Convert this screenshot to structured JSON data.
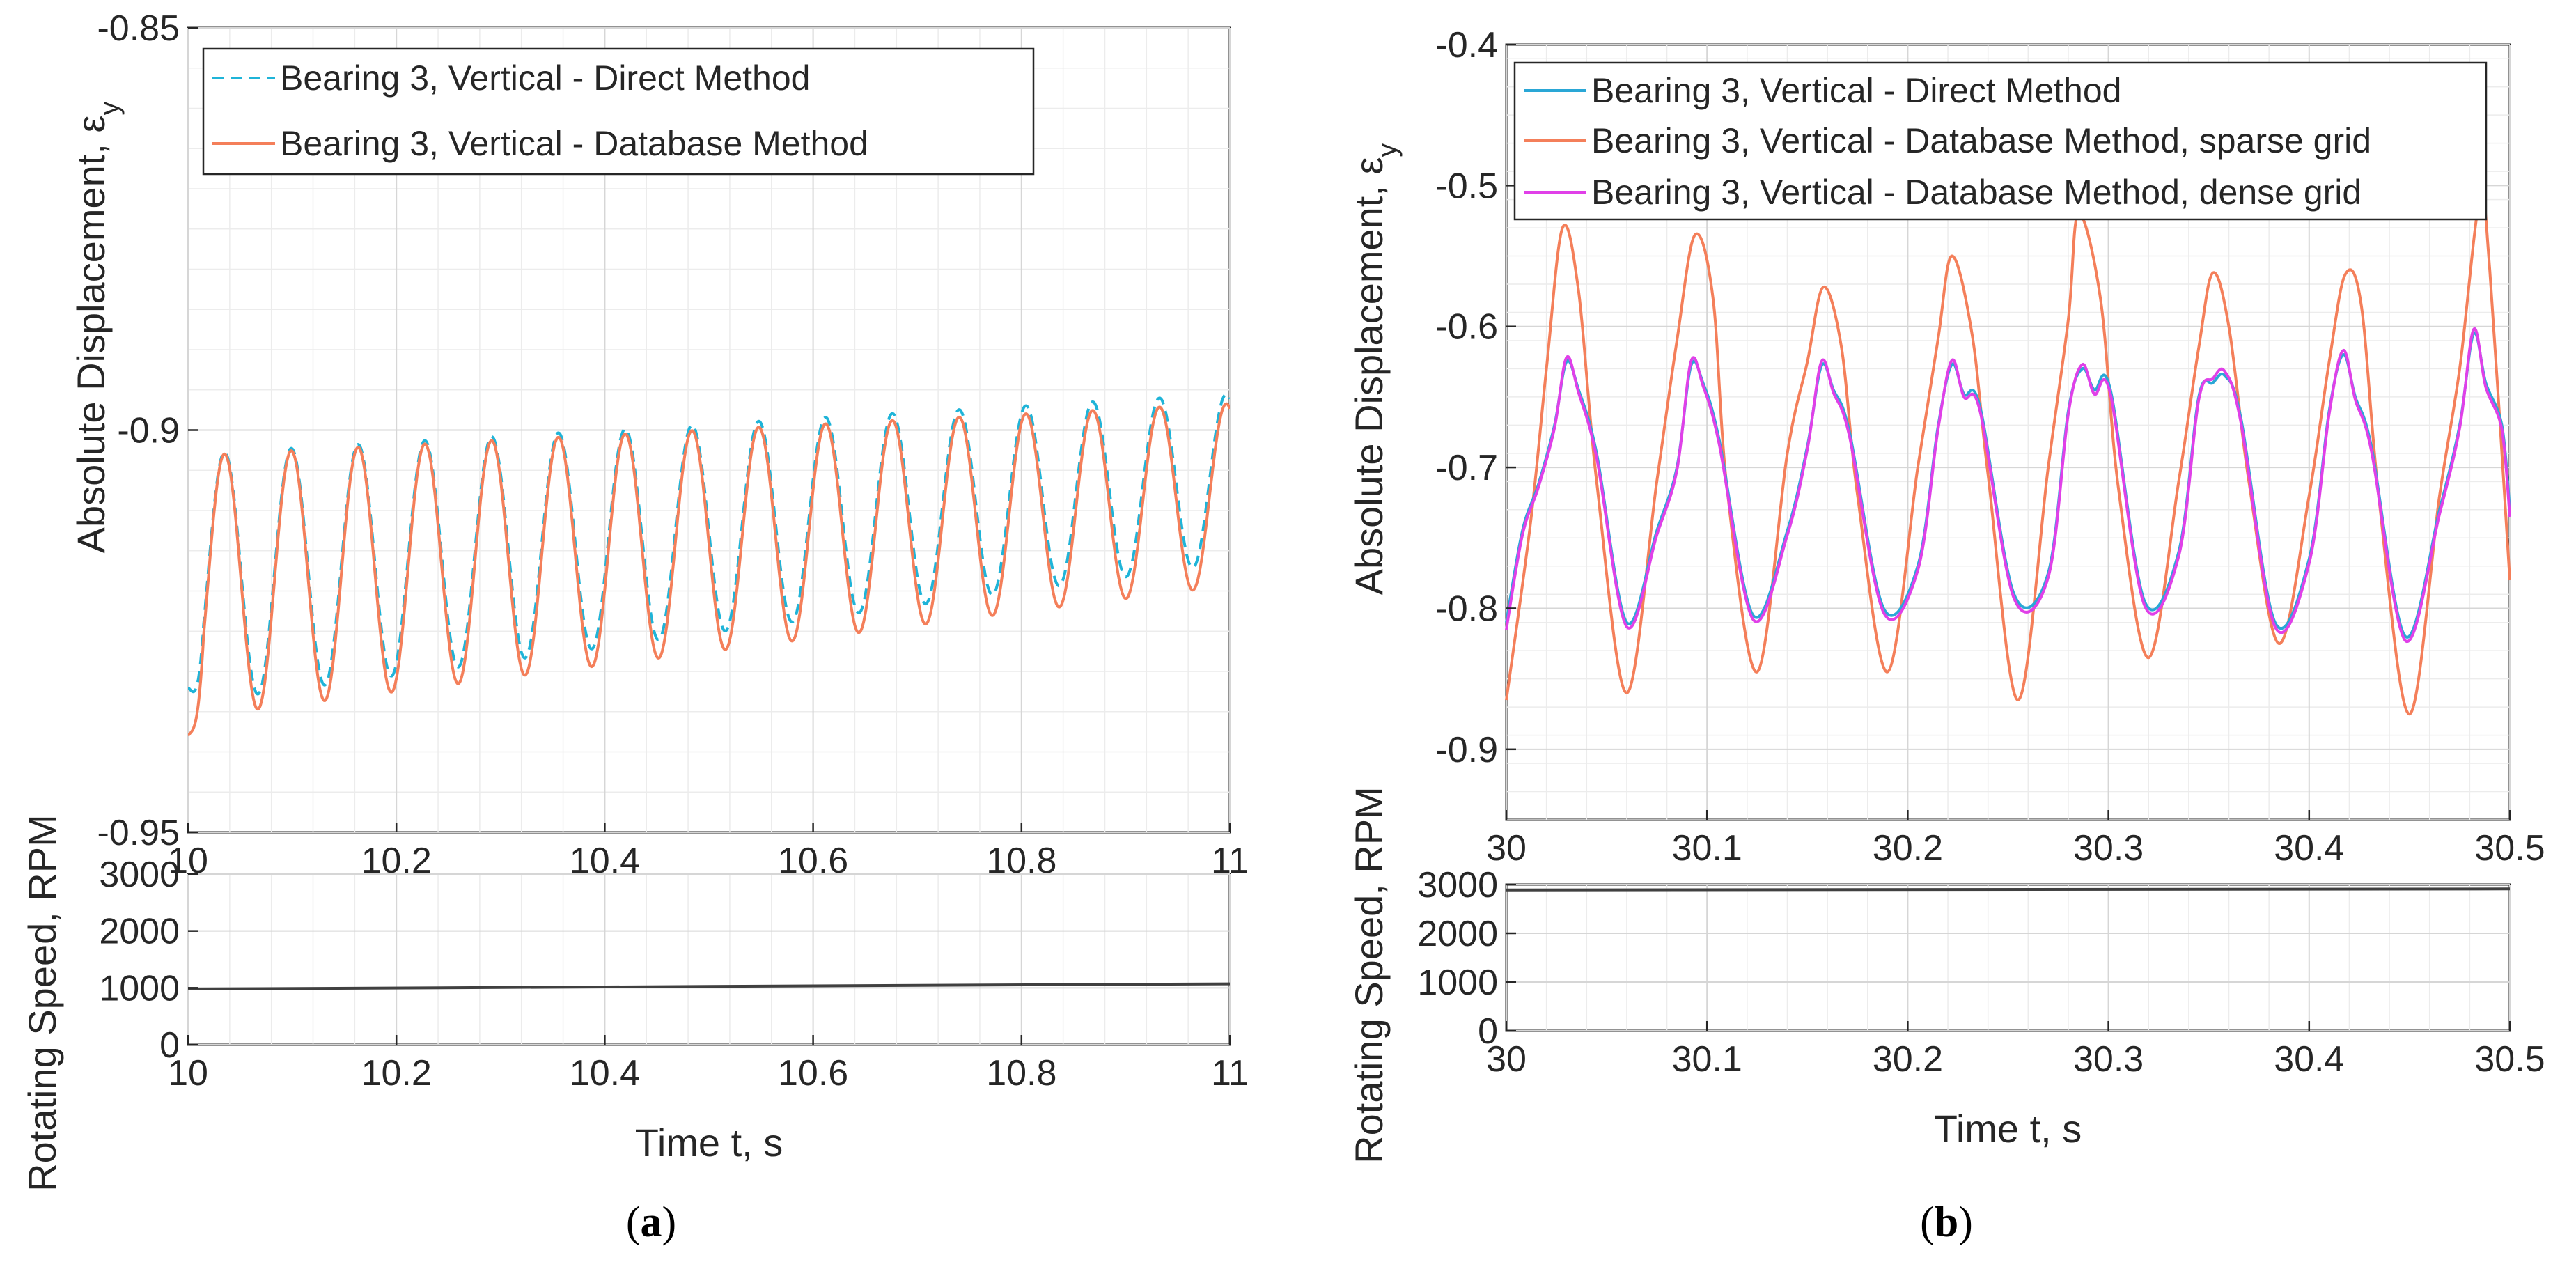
{
  "chart_data": [
    {
      "type": "line",
      "panel": "a",
      "caption": "(a)",
      "ylabel": "Absolute Displacement, ε",
      "ylabel_subscript": "y",
      "xlim": [
        10,
        11
      ],
      "ylim": [
        -0.95,
        -0.85
      ],
      "x_ticks": [
        "10",
        "10.2",
        "10.4",
        "10.6",
        "10.8",
        "11"
      ],
      "y_ticks": [
        "-0.85",
        "-0.9",
        "-0.95"
      ],
      "legend": {
        "position": "top-left"
      },
      "series": [
        {
          "name": "Bearing 3, Vertical - Direct Method",
          "color": "#1fb4d8",
          "dash": true,
          "signal": {
            "freq_hz": 15.6,
            "first_peak": 10.035,
            "amp_start": 0.0155,
            "amp_end": 0.0105,
            "mean_start": -0.9185,
            "mean_end": -0.906,
            "start_value": -0.932
          }
        },
        {
          "name": "Bearing 3, Vertical - Database Method",
          "color": "#f47f5a",
          "dash": false,
          "signal": {
            "freq_hz": 15.6,
            "first_peak": 10.035,
            "amp_start": 0.0163,
            "amp_end": 0.0113,
            "mean_start": -0.9195,
            "mean_end": -0.908,
            "start_value": -0.938
          }
        }
      ]
    },
    {
      "type": "line",
      "panel": "a-speed",
      "ylabel": "Rotating Speed, RPM",
      "xlabel": "Time t, s",
      "xlim": [
        10,
        11
      ],
      "ylim": [
        0,
        3000
      ],
      "x_ticks": [
        "10",
        "10.2",
        "10.4",
        "10.6",
        "10.8",
        "11"
      ],
      "y_ticks": [
        "3000",
        "2000",
        "1000",
        "0"
      ],
      "series": [
        {
          "color": "#404040",
          "x": [
            10,
            11
          ],
          "y": [
            980,
            1070
          ]
        }
      ]
    },
    {
      "type": "line",
      "panel": "b",
      "caption": "(b)",
      "ylabel": "Absolute Displacement, ε",
      "ylabel_subscript": "y",
      "xlim": [
        30,
        30.5
      ],
      "ylim": [
        -0.95,
        -0.4
      ],
      "x_ticks": [
        "30",
        "30.1",
        "30.2",
        "30.3",
        "30.4",
        "30.5"
      ],
      "y_ticks": [
        "-0.4",
        "-0.5",
        "-0.6",
        "-0.7",
        "-0.8",
        "-0.9"
      ],
      "legend": {
        "position": "top-left"
      },
      "series": [
        {
          "name": "Bearing 3, Vertical - Direct Method",
          "color": "#2aa7d6",
          "x": [
            30.0,
            30.008,
            30.016,
            30.024,
            30.03,
            30.036,
            30.045,
            30.06,
            30.075,
            30.085,
            30.092,
            30.098,
            30.106,
            30.123,
            30.14,
            30.15,
            30.157,
            30.163,
            30.171,
            30.188,
            30.205,
            30.215,
            30.222,
            30.228,
            30.236,
            30.253,
            30.27,
            30.28,
            30.287,
            30.293,
            30.301,
            30.318,
            30.335,
            30.345,
            30.352,
            30.358,
            30.366,
            30.383,
            30.4,
            30.41,
            30.417,
            30.423,
            30.431,
            30.448,
            30.465,
            30.475,
            30.482,
            30.488,
            30.496,
            30.5
          ],
          "y": [
            -0.81,
            -0.745,
            -0.712,
            -0.67,
            -0.625,
            -0.645,
            -0.69,
            -0.81,
            -0.745,
            -0.7,
            -0.628,
            -0.64,
            -0.68,
            -0.805,
            -0.745,
            -0.685,
            -0.628,
            -0.645,
            -0.675,
            -0.8,
            -0.77,
            -0.672,
            -0.627,
            -0.648,
            -0.657,
            -0.79,
            -0.775,
            -0.66,
            -0.63,
            -0.645,
            -0.645,
            -0.795,
            -0.76,
            -0.65,
            -0.64,
            -0.635,
            -0.665,
            -0.81,
            -0.765,
            -0.66,
            -0.62,
            -0.65,
            -0.685,
            -0.82,
            -0.73,
            -0.67,
            -0.605,
            -0.64,
            -0.67,
            -0.73
          ]
        },
        {
          "name": "Bearing 3, Vertical - Database Method, sparse grid",
          "color": "#f47f5a",
          "x": [
            30.0,
            30.012,
            30.02,
            30.028,
            30.036,
            30.045,
            30.06,
            30.075,
            30.085,
            30.094,
            30.103,
            30.11,
            30.125,
            30.14,
            30.15,
            30.158,
            30.167,
            30.175,
            30.19,
            30.205,
            30.215,
            30.222,
            30.232,
            30.24,
            30.255,
            30.27,
            30.28,
            30.285,
            30.296,
            30.305,
            30.32,
            30.335,
            30.345,
            30.352,
            30.36,
            30.37,
            30.385,
            30.4,
            30.41,
            30.418,
            30.426,
            30.435,
            30.45,
            30.465,
            30.475,
            30.485,
            30.49,
            30.5
          ],
          "y": [
            -0.865,
            -0.74,
            -0.63,
            -0.53,
            -0.575,
            -0.71,
            -0.86,
            -0.71,
            -0.61,
            -0.535,
            -0.58,
            -0.715,
            -0.845,
            -0.69,
            -0.625,
            -0.572,
            -0.615,
            -0.72,
            -0.845,
            -0.7,
            -0.61,
            -0.55,
            -0.605,
            -0.705,
            -0.865,
            -0.7,
            -0.595,
            -0.52,
            -0.58,
            -0.715,
            -0.835,
            -0.71,
            -0.615,
            -0.562,
            -0.6,
            -0.71,
            -0.825,
            -0.72,
            -0.625,
            -0.563,
            -0.585,
            -0.725,
            -0.875,
            -0.72,
            -0.63,
            -0.51,
            -0.56,
            -0.78
          ]
        },
        {
          "name": "Bearing 3, Vertical - Database Method, dense grid",
          "color": "#e040e8",
          "x": [
            30.0,
            30.008,
            30.016,
            30.024,
            30.03,
            30.036,
            30.045,
            30.06,
            30.075,
            30.085,
            30.092,
            30.098,
            30.106,
            30.123,
            30.14,
            30.15,
            30.157,
            30.163,
            30.171,
            30.188,
            30.205,
            30.215,
            30.222,
            30.228,
            30.236,
            30.253,
            30.27,
            30.28,
            30.287,
            30.293,
            30.301,
            30.318,
            30.335,
            30.345,
            30.352,
            30.358,
            30.366,
            30.383,
            30.4,
            30.41,
            30.417,
            30.423,
            30.431,
            30.448,
            30.465,
            30.475,
            30.482,
            30.488,
            30.496,
            30.5
          ],
          "y": [
            -0.815,
            -0.748,
            -0.714,
            -0.672,
            -0.622,
            -0.647,
            -0.693,
            -0.813,
            -0.748,
            -0.702,
            -0.625,
            -0.642,
            -0.683,
            -0.808,
            -0.748,
            -0.687,
            -0.625,
            -0.647,
            -0.678,
            -0.803,
            -0.773,
            -0.674,
            -0.624,
            -0.65,
            -0.66,
            -0.793,
            -0.778,
            -0.662,
            -0.627,
            -0.648,
            -0.648,
            -0.798,
            -0.763,
            -0.652,
            -0.637,
            -0.632,
            -0.668,
            -0.813,
            -0.768,
            -0.662,
            -0.617,
            -0.652,
            -0.688,
            -0.823,
            -0.733,
            -0.672,
            -0.602,
            -0.643,
            -0.673,
            -0.735
          ]
        }
      ]
    },
    {
      "type": "line",
      "panel": "b-speed",
      "ylabel": "Rotating Speed, RPM",
      "xlabel": "Time t, s",
      "xlim": [
        30,
        30.5
      ],
      "ylim": [
        0,
        3000
      ],
      "x_ticks": [
        "30",
        "30.1",
        "30.2",
        "30.3",
        "30.4",
        "30.5"
      ],
      "y_ticks": [
        "3000",
        "2000",
        "1000",
        "0"
      ],
      "series": [
        {
          "color": "#404040",
          "x": [
            30,
            30.5
          ],
          "y": [
            2890,
            2910
          ]
        }
      ]
    }
  ]
}
